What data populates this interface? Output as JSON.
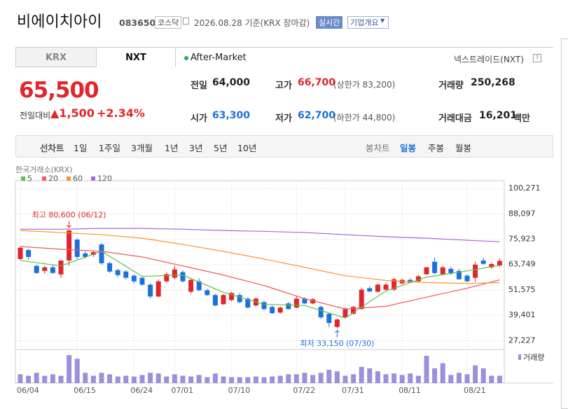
{
  "header": {
    "title": "비에이치아이",
    "code": "083650",
    "market": "코스닥",
    "date": "2026.08.28 기준(KRX 장마감)",
    "realtime": "실시간",
    "overview": "기업개요"
  },
  "tabs": [
    "KRX",
    "NXT"
  ],
  "session": "After-Market",
  "exchange": "넥스트레이드(NXT)",
  "quote": {
    "price": "65,500",
    "change_label": "전일대비",
    "change": "▲1,500",
    "change_pct": "+2.34%",
    "stats": [
      {
        "label": "전일",
        "value": "64,000"
      },
      {
        "label": "고가",
        "value": "66,700",
        "note": "(상한가 83,200)"
      },
      {
        "label": "거래량",
        "value": "250,268"
      },
      {
        "label": "시가",
        "value": "63,300"
      },
      {
        "label": "저가",
        "value": "62,700",
        "note": "(하한가 44,800)"
      },
      {
        "label": "거래대금",
        "value": "16,201",
        "unit": "백만"
      }
    ]
  },
  "toolbar": {
    "line_chart": "선차트",
    "periods": [
      "1일",
      "1주일",
      "3개월",
      "1년",
      "3년",
      "5년",
      "10년"
    ],
    "candle_chart": "봉차트",
    "candle_periods": [
      "일봉",
      "주봉",
      "월봉"
    ]
  },
  "chart_data": {
    "type": "candlestick",
    "source": "한국거래소(KRX)",
    "categories": [
      "06/04",
      null,
      null,
      null,
      null,
      null,
      null,
      "06/15",
      null,
      null,
      null,
      null,
      null,
      null,
      "06/24",
      null,
      null,
      null,
      null,
      "07/01",
      null,
      null,
      null,
      null,
      null,
      null,
      "07/10",
      null,
      null,
      null,
      null,
      null,
      null,
      null,
      "07/22",
      null,
      null,
      null,
      null,
      null,
      "07/31",
      null,
      null,
      null,
      null,
      null,
      null,
      "08/11",
      null,
      null,
      null,
      null,
      null,
      null,
      null,
      "08/21",
      null,
      null,
      null,
      null
    ],
    "open": [
      66400,
      70700,
      63100,
      60700,
      62400,
      59000,
      65700,
      75700,
      69100,
      68400,
      73400,
      64400,
      61100,
      60400,
      58400,
      57400,
      54100,
      48400,
      55700,
      57400,
      60100,
      50700,
      55700,
      51400,
      49100,
      44700,
      46700,
      49100,
      47400,
      44100,
      45700,
      43400,
      40700,
      45100,
      43100,
      47400,
      45100,
      43400,
      40100,
      33800,
      38400,
      40100,
      42400,
      52400,
      50700,
      51700,
      51700,
      54700,
      56400,
      55700,
      59100,
      65100,
      59100,
      61700,
      60700,
      58400,
      57400,
      65700,
      62400,
      63300
    ],
    "high": [
      72400,
      71400,
      63700,
      63100,
      63400,
      65700,
      80600,
      76400,
      70100,
      70700,
      74100,
      65100,
      61700,
      61100,
      59100,
      58100,
      54700,
      56700,
      60100,
      63100,
      61100,
      56700,
      57100,
      52100,
      49700,
      49700,
      50700,
      50100,
      48100,
      48100,
      46400,
      44100,
      43700,
      45700,
      48700,
      48100,
      47700,
      44100,
      40700,
      37700,
      43100,
      44100,
      52700,
      53400,
      54700,
      55100,
      57400,
      57100,
      57100,
      58700,
      62700,
      67100,
      63100,
      62700,
      61700,
      59100,
      65100,
      67100,
      64700,
      66700
    ],
    "low": [
      65700,
      66000,
      59400,
      59400,
      59400,
      57400,
      63100,
      66400,
      66700,
      67400,
      63700,
      59700,
      57700,
      56700,
      54700,
      53400,
      47400,
      48100,
      55100,
      56700,
      55100,
      49700,
      51100,
      48700,
      43700,
      44400,
      46100,
      45100,
      42700,
      43700,
      41700,
      40100,
      40100,
      42100,
      42700,
      44700,
      44700,
      37700,
      33800,
      33150,
      38100,
      39700,
      42100,
      50700,
      50400,
      51400,
      51100,
      54400,
      55100,
      55400,
      58700,
      59100,
      58700,
      58700,
      56400,
      55400,
      55400,
      63700,
      61700,
      62700
    ],
    "close": [
      71800,
      67400,
      59700,
      62400,
      59700,
      65700,
      80100,
      67400,
      67400,
      69700,
      64400,
      60400,
      58700,
      57400,
      55700,
      54100,
      48400,
      55700,
      59100,
      61400,
      55700,
      56400,
      51400,
      49100,
      44100,
      49100,
      50100,
      45700,
      43100,
      47400,
      42400,
      40400,
      43100,
      42400,
      47400,
      45100,
      47100,
      38400,
      35700,
      37400,
      42400,
      43400,
      51700,
      50800,
      54100,
      54100,
      56700,
      56400,
      55100,
      58100,
      62400,
      59700,
      62400,
      59700,
      56700,
      55700,
      63700,
      64100,
      64000,
      65500
    ],
    "up_color": "#e0262a",
    "down_color": "#1d6fdc",
    "ylim": [
      24000,
      104000
    ],
    "yticks": [
      {
        "value": 27227,
        "label": "27,227"
      },
      {
        "value": 39401,
        "label": "39,401"
      },
      {
        "value": 51575,
        "label": "51,575"
      },
      {
        "value": 63749,
        "label": "63,749"
      },
      {
        "value": 75923,
        "label": "75,923"
      },
      {
        "value": 88097,
        "label": "88,097"
      },
      {
        "value": 100271,
        "label": "100,271"
      }
    ],
    "grid": true,
    "high_label": "최고 80,600 (06/12)",
    "low_label": "최저 33,150 (07/30)",
    "moving_averages": [
      {
        "name": "5",
        "color": "#5cbf4a",
        "x": [
          0,
          5,
          10,
          15,
          20,
          25,
          30,
          35,
          40,
          45,
          50,
          55,
          59
        ],
        "values": [
          65700,
          63100,
          70100,
          58100,
          58700,
          50400,
          44700,
          44100,
          38100,
          51100,
          57700,
          60700,
          63400
        ]
      },
      {
        "name": "20",
        "color": "#f05a5a",
        "x": [
          0,
          5,
          10,
          15,
          20,
          25,
          30,
          35,
          40,
          45,
          50,
          55,
          59
        ],
        "values": [
          72400,
          71100,
          70100,
          67400,
          63100,
          58700,
          53700,
          47400,
          42400,
          43700,
          48100,
          52400,
          56400
        ]
      },
      {
        "name": "60",
        "color": "#f7972a",
        "x": [
          0,
          5,
          10,
          15,
          20,
          25,
          30,
          35,
          40,
          45,
          50,
          55,
          59
        ],
        "values": [
          80100,
          79100,
          78100,
          76400,
          73400,
          70100,
          66400,
          62400,
          58400,
          56100,
          55100,
          54700,
          55100
        ]
      },
      {
        "name": "120",
        "color": "#a766d6",
        "x": [
          0,
          5,
          10,
          15,
          20,
          25,
          30,
          35,
          40,
          45,
          50,
          55,
          59
        ],
        "values": [
          80700,
          80700,
          81100,
          81100,
          80700,
          80100,
          79700,
          79100,
          78100,
          77100,
          76400,
          75400,
          74700
        ]
      }
    ],
    "volume": {
      "name": "거래량",
      "color": "#9c8fdb",
      "values": [
        300000,
        250000,
        350000,
        250000,
        300000,
        250000,
        950000,
        825000,
        350000,
        250000,
        350000,
        300000,
        225000,
        250000,
        225000,
        275000,
        350000,
        325000,
        225000,
        300000,
        250000,
        225000,
        275000,
        200000,
        325000,
        225000,
        200000,
        200000,
        200000,
        225000,
        200000,
        225000,
        250000,
        300000,
        300000,
        350000,
        275000,
        350000,
        450000,
        400000,
        250000,
        300000,
        550000,
        500000,
        400000,
        300000,
        325000,
        275000,
        325000,
        250000,
        925000,
        500000,
        675000,
        275000,
        350000,
        300000,
        600000,
        500000,
        250000,
        250268
      ]
    }
  }
}
